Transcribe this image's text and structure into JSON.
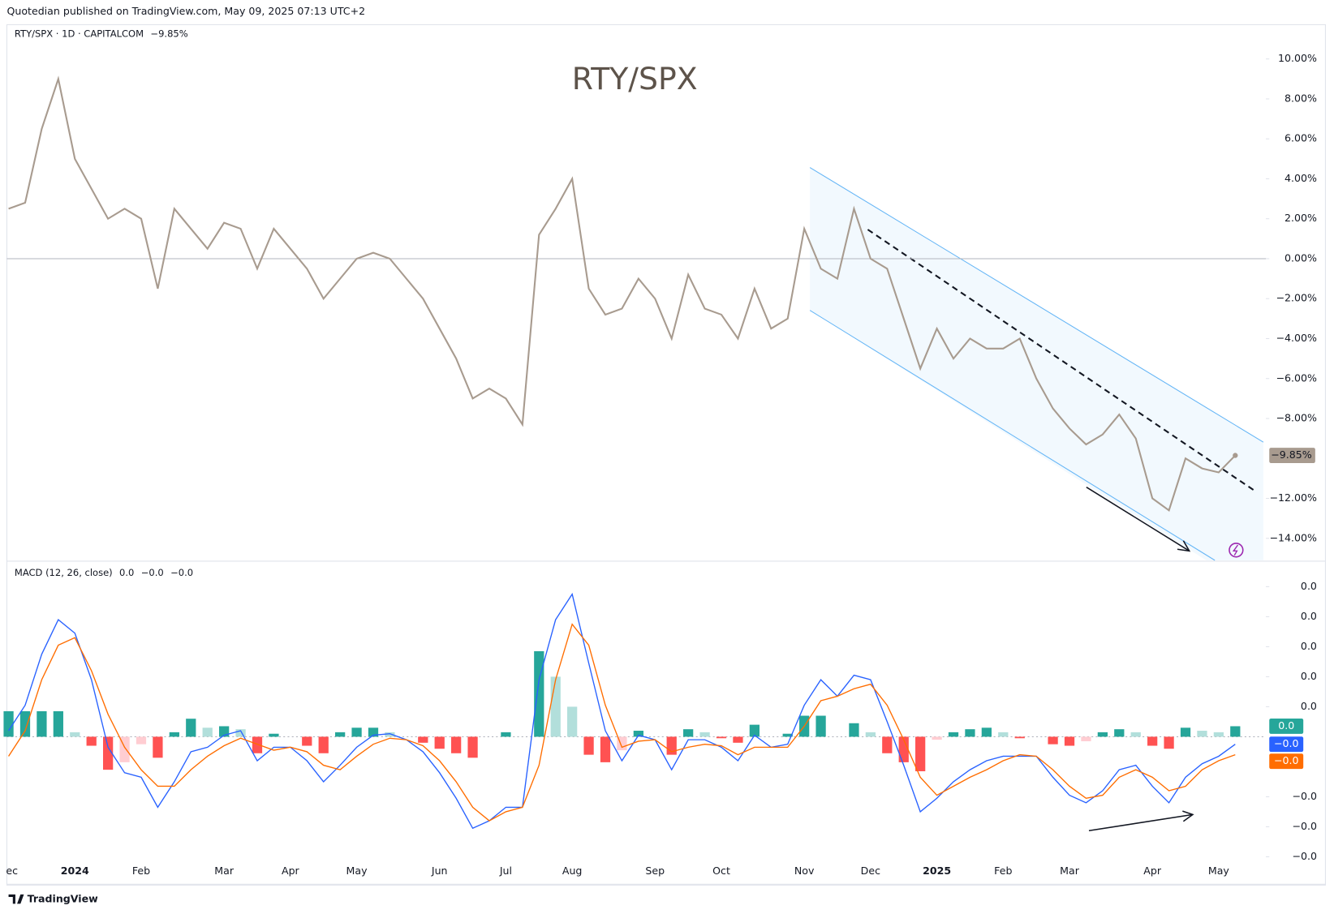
{
  "header": {
    "published": "Quotedian published on TradingView.com, May 09, 2025 07:13 UTC+2",
    "logo": "TradingView"
  },
  "chart_data": [
    {
      "type": "line",
      "title": "RTY/SPX",
      "symbol_label": "RTY/SPX · 1D · CAPITALCOM",
      "ylim": [
        -15.1,
        12.1
      ],
      "yticks": [
        {
          "value": 10,
          "label": "10.00%"
        },
        {
          "value": 8,
          "label": "8.00%"
        },
        {
          "value": 6,
          "label": "6.00%"
        },
        {
          "value": 4,
          "label": "4.00%"
        },
        {
          "value": 2,
          "label": "2.00%"
        },
        {
          "value": 0,
          "label": "0.00%"
        },
        {
          "value": -2,
          "label": "−2.00%"
        },
        {
          "value": -4,
          "label": "−4.00%"
        },
        {
          "value": -6,
          "label": "−6.00%"
        },
        {
          "value": -8,
          "label": "−8.00%"
        },
        {
          "value": -12,
          "label": "−12.00%"
        },
        {
          "value": -14,
          "label": "−14.00%"
        }
      ],
      "series": [
        {
          "color": "#a89b8f",
          "last_label": "−9.85%",
          "values": [
            2.5,
            2.8,
            6.5,
            9.0,
            5.0,
            3.5,
            2.0,
            2.5,
            2.0,
            -1.5,
            2.5,
            1.5,
            0.5,
            1.8,
            1.5,
            -0.5,
            1.5,
            0.5,
            -0.5,
            -2.0,
            -1.0,
            0.0,
            0.3,
            0.0,
            -1.0,
            -2.0,
            -3.5,
            -5.0,
            -7.0,
            -6.5,
            -7.0,
            -8.3,
            1.2,
            2.5,
            4.0,
            -1.5,
            -2.8,
            -2.5,
            -1.0,
            -2.0,
            -4.0,
            -0.8,
            -2.5,
            -2.8,
            -4.0,
            -1.5,
            -3.5,
            -3.0,
            1.5,
            -0.5,
            -1.0,
            2.5,
            0.0,
            -0.5,
            -3.0,
            -5.5,
            -3.5,
            -5.0,
            -4.0,
            -4.5,
            -4.5,
            -4.0,
            -6.0,
            -7.5,
            -8.5,
            -9.3,
            -8.8,
            -7.8,
            -9.0,
            -12.0,
            -12.6,
            -10.0,
            -10.5,
            -10.7,
            -9.85
          ]
        }
      ]
    },
    {
      "type": "macd",
      "title": "MACD (12, 26, close)",
      "categories": [
        "ec",
        null,
        null,
        null,
        "2024",
        null,
        null,
        null,
        "Feb",
        null,
        null,
        null,
        null,
        "Mar",
        null,
        null,
        null,
        "Apr",
        null,
        null,
        null,
        "May",
        null,
        null,
        null,
        null,
        "Jun",
        null,
        null,
        null,
        "Jul",
        null,
        null,
        null,
        "Aug",
        null,
        null,
        null,
        null,
        "Sep",
        null,
        null,
        null,
        "Oct",
        null,
        null,
        null,
        null,
        "Nov",
        null,
        null,
        null,
        "Dec",
        null,
        null,
        null,
        "2025",
        null,
        null,
        null,
        "Feb",
        null,
        null,
        null,
        "Mar",
        null,
        null,
        null,
        null,
        "Apr",
        null,
        null,
        null,
        "May",
        null
      ],
      "ylim": [
        -0.0083,
        0.0117
      ],
      "yticks": [
        {
          "value": 0.01,
          "label": "0.0"
        },
        {
          "value": 0.008,
          "label": "0.0"
        },
        {
          "value": 0.006,
          "label": "0.0"
        },
        {
          "value": 0.004,
          "label": "0.0"
        },
        {
          "value": 0.002,
          "label": "0.0"
        },
        {
          "value": -0.004,
          "label": "−0.0"
        },
        {
          "value": -0.006,
          "label": "−0.0"
        },
        {
          "value": -0.008,
          "label": "−0.0"
        }
      ],
      "series": [
        {
          "kind": "histogram",
          "color": "#26a69a",
          "light_color": "#b2dfdb",
          "negative_color": "#ff5252",
          "light_negative_color": "#ffcdd2",
          "last_label": "0.0",
          "values": [
            0.0017,
            0.0017,
            0.0017,
            0.0017,
            0.0003,
            -0.0006,
            -0.0022,
            -0.0017,
            -0.0005,
            -0.0014,
            0.0003,
            0.0012,
            0.0006,
            0.0007,
            0.0005,
            -0.0011,
            0.0002,
            0,
            -0.0006,
            -0.0011,
            0.0003,
            0.0006,
            0.0006,
            0.0003,
            0,
            -0.0004,
            -0.0008,
            -0.0011,
            -0.0014,
            0,
            0.0003,
            0,
            0.0057,
            0.004,
            0.002,
            -0.0012,
            -0.0017,
            -0.0009,
            0.0004,
            0,
            -0.0012,
            0.0005,
            0.0003,
            -0.0001,
            -0.0004,
            0.0008,
            0,
            0.0002,
            0.0014,
            0.0014,
            0,
            0.0009,
            0.0003,
            -0.0011,
            -0.0017,
            -0.0023,
            -0.0002,
            0.0003,
            0.0005,
            0.0006,
            0.0003,
            -0.0001,
            0,
            -0.0005,
            -0.0006,
            -0.0003,
            0.0003,
            0.0005,
            0.0003,
            -0.0006,
            -0.0008,
            0.0006,
            0.0004,
            0.0003,
            0.0007
          ]
        },
        {
          "kind": "line",
          "color": "#2962ff",
          "last_label": "−0.0",
          "values": [
            0.0004,
            0.0021,
            0.0055,
            0.0078,
            0.0069,
            0.0038,
            -0.0007,
            -0.0024,
            -0.0027,
            -0.0047,
            -0.003,
            -0.001,
            -0.0007,
            0.0001,
            0.0004,
            -0.0016,
            -0.0007,
            -0.0007,
            -0.0016,
            -0.003,
            -0.0019,
            -0.0007,
            0.0001,
            0.0002,
            -0.0002,
            -0.001,
            -0.0024,
            -0.0041,
            -0.0061,
            -0.0056,
            -0.0047,
            -0.0047,
            0.0038,
            0.0078,
            0.0095,
            0.0049,
            0.0004,
            -0.0016,
            0.0001,
            -0.0002,
            -0.0022,
            -0.0002,
            -0.0002,
            -0.0007,
            -0.0016,
            0.0001,
            -0.0007,
            -0.0005,
            0.0021,
            0.0038,
            0.0027,
            0.0041,
            0.0038,
            0.001,
            -0.0019,
            -0.005,
            -0.0041,
            -0.003,
            -0.0022,
            -0.0016,
            -0.0013,
            -0.0013,
            -0.0013,
            -0.0027,
            -0.0039,
            -0.0044,
            -0.0036,
            -0.0022,
            -0.0019,
            -0.0033,
            -0.0044,
            -0.0027,
            -0.0018,
            -0.0013,
            -0.0005
          ]
        },
        {
          "kind": "line",
          "color": "#ff6d00",
          "last_label": "−0.0",
          "values": [
            -0.0013,
            0.0004,
            0.0038,
            0.0061,
            0.0066,
            0.0044,
            0.0015,
            -0.0007,
            -0.0022,
            -0.0033,
            -0.0033,
            -0.0022,
            -0.0013,
            -0.0006,
            -0.0001,
            -0.0005,
            -0.0009,
            -0.0007,
            -0.001,
            -0.0019,
            -0.0022,
            -0.0013,
            -0.0005,
            -0.0001,
            -0.0002,
            -0.0006,
            -0.0016,
            -0.003,
            -0.0047,
            -0.0056,
            -0.005,
            -0.0047,
            -0.0019,
            0.0038,
            0.0075,
            0.0061,
            0.0021,
            -0.0007,
            -0.0003,
            -0.0002,
            -0.001,
            -0.0007,
            -0.0005,
            -0.0006,
            -0.0012,
            -0.0007,
            -0.0007,
            -0.0007,
            0.0007,
            0.0024,
            0.0027,
            0.0032,
            0.0035,
            0.0021,
            -0.0002,
            -0.0027,
            -0.0039,
            -0.0033,
            -0.0027,
            -0.0022,
            -0.0016,
            -0.0012,
            -0.0013,
            -0.0022,
            -0.0033,
            -0.0041,
            -0.0039,
            -0.0027,
            -0.0022,
            -0.0027,
            -0.0036,
            -0.0033,
            -0.0022,
            -0.0016,
            -0.0012
          ]
        }
      ]
    }
  ]
}
